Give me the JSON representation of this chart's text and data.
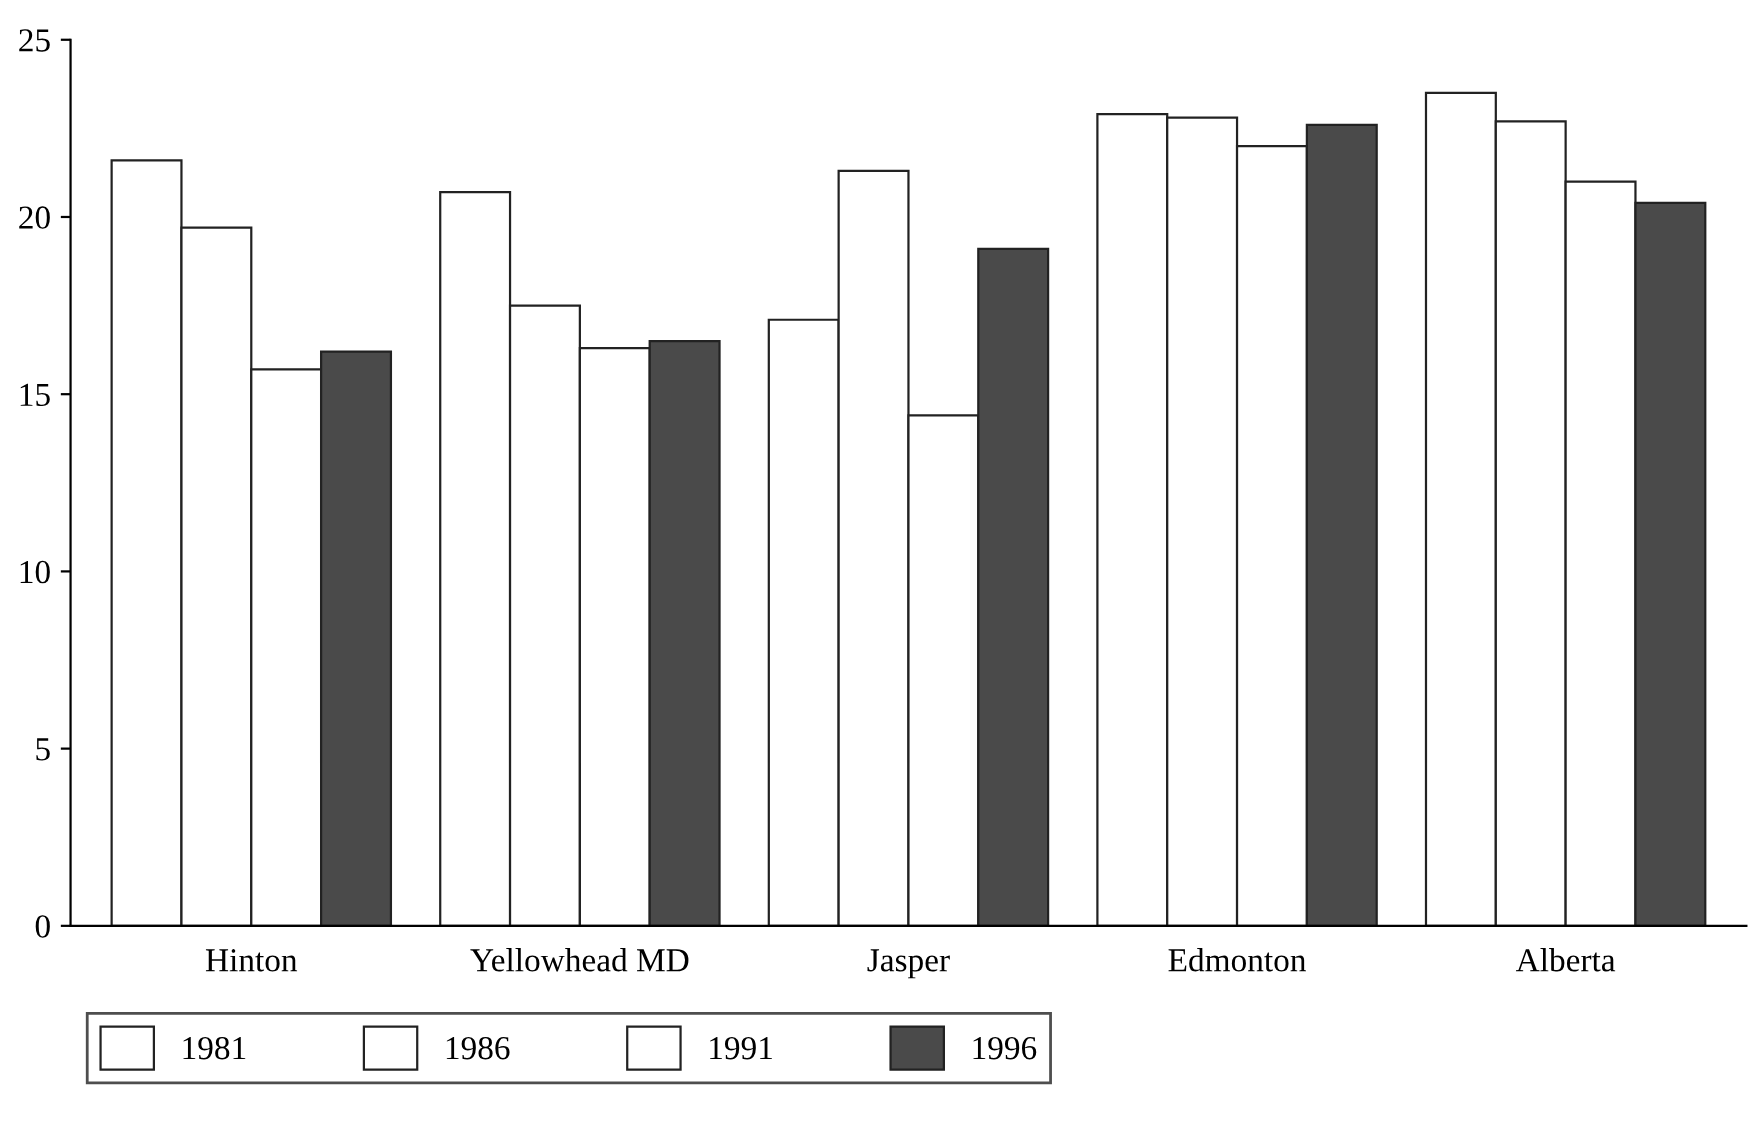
{
  "chart_data": {
    "type": "bar",
    "categories": [
      "Hinton",
      "Yellowhead MD",
      "Jasper",
      "Edmonton",
      "Alberta"
    ],
    "series": [
      {
        "name": "1981",
        "color": "#ffffff",
        "values": [
          21.6,
          20.7,
          17.1,
          22.9,
          23.5
        ]
      },
      {
        "name": "1986",
        "color": "#ffffff",
        "values": [
          19.7,
          17.5,
          21.3,
          22.8,
          22.7
        ]
      },
      {
        "name": "1991",
        "color": "#ffffff",
        "values": [
          15.7,
          16.3,
          14.4,
          22.0,
          21.0
        ]
      },
      {
        "name": "1996",
        "color": "#4a4a4a",
        "values": [
          16.2,
          16.5,
          19.1,
          22.6,
          20.4
        ]
      }
    ],
    "ylim": [
      0,
      25
    ],
    "yticks": [
      0,
      5,
      10,
      15,
      20,
      25
    ],
    "grid": false,
    "legend": "bottom left"
  }
}
